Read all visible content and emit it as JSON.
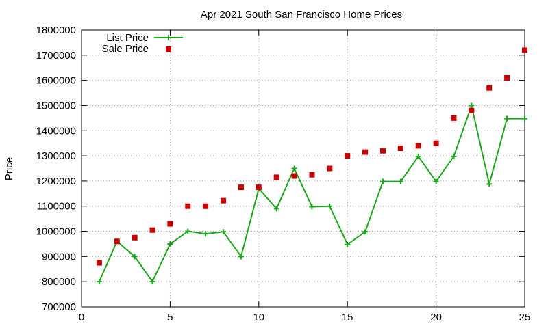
{
  "chart_data": {
    "type": "line",
    "title": "Apr 2021 South San Francisco Home Prices",
    "xlabel": "",
    "ylabel": "Price",
    "xlim": [
      0,
      25
    ],
    "ylim": [
      700000,
      1800000
    ],
    "x_ticks": [
      0,
      5,
      10,
      15,
      20,
      25
    ],
    "y_ticks": [
      700000,
      800000,
      900000,
      1000000,
      1100000,
      1200000,
      1300000,
      1400000,
      1500000,
      1600000,
      1700000,
      1800000
    ],
    "grid": true,
    "legend_position": "top-left",
    "series": [
      {
        "name": "List Price",
        "style": "lines+points",
        "color": "#1ba81b",
        "x": [
          1,
          2,
          3,
          4,
          5,
          6,
          7,
          8,
          9,
          10,
          11,
          12,
          13,
          14,
          15,
          16,
          17,
          18,
          19,
          20,
          21,
          22,
          23,
          24,
          25
        ],
        "values": [
          800000,
          960000,
          900000,
          800000,
          950000,
          1000000,
          990000,
          998000,
          900000,
          1170000,
          1090000,
          1250000,
          1098000,
          1100000,
          948000,
          998000,
          1198000,
          1198000,
          1298000,
          1198000,
          1298000,
          1500000,
          1188000,
          1448000,
          1448000
        ]
      },
      {
        "name": "Sale Price",
        "style": "points",
        "color": "#c80000",
        "x": [
          1,
          2,
          3,
          4,
          5,
          6,
          7,
          8,
          9,
          10,
          11,
          12,
          13,
          14,
          15,
          16,
          17,
          18,
          19,
          20,
          21,
          22,
          23,
          24,
          25
        ],
        "values": [
          875000,
          960000,
          975000,
          1005000,
          1030000,
          1100000,
          1100000,
          1122000,
          1175000,
          1175000,
          1215000,
          1220000,
          1225000,
          1250000,
          1300000,
          1315000,
          1320000,
          1330000,
          1340000,
          1350000,
          1450000,
          1480000,
          1570000,
          1610000,
          1720000
        ]
      }
    ]
  }
}
